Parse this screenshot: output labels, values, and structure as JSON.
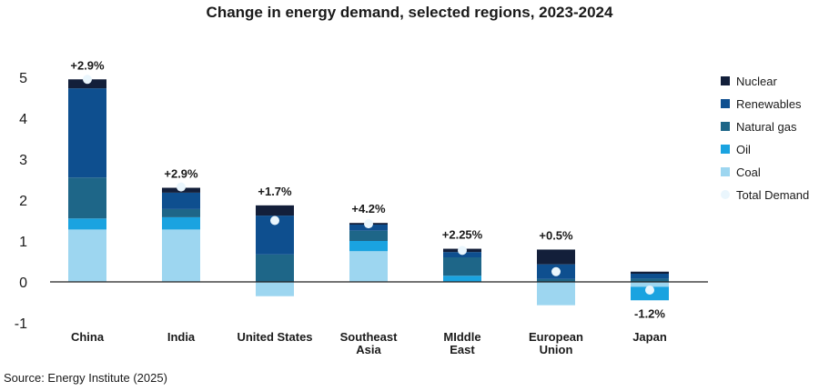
{
  "chart_data": {
    "type": "bar",
    "stacked": true,
    "title": "Change in energy demand, selected regions, 2023-2024",
    "source": "Source: Energy Institute (2025)",
    "xlabel": "",
    "ylabel": "",
    "ylim": [
      -1,
      5
    ],
    "yticks": [
      "-1",
      "0",
      "1",
      "2",
      "3",
      "4",
      "5"
    ],
    "categories": [
      [
        "China"
      ],
      [
        "India"
      ],
      [
        "United States"
      ],
      [
        "Southeast",
        "Asia"
      ],
      [
        "MIddle",
        "East"
      ],
      [
        "European",
        "Union"
      ],
      [
        "Japan"
      ]
    ],
    "series": [
      {
        "name": "Coal",
        "color": "#9dd6f0",
        "values": [
          1.28,
          1.28,
          -0.35,
          0.75,
          0.0,
          -0.57,
          -0.12
        ]
      },
      {
        "name": "Oil",
        "color": "#1aa3e0",
        "values": [
          0.27,
          0.3,
          0.0,
          0.25,
          0.15,
          0.0,
          -0.33
        ]
      },
      {
        "name": "Natural gas",
        "color": "#1e6688",
        "values": [
          1.0,
          0.2,
          0.67,
          0.25,
          0.45,
          0.07,
          0.08
        ]
      },
      {
        "name": "Renewables",
        "color": "#0e4f8f",
        "values": [
          2.18,
          0.4,
          0.95,
          0.15,
          0.13,
          0.36,
          0.12
        ]
      },
      {
        "name": "Nuclear",
        "color": "#131f3a",
        "values": [
          0.22,
          0.12,
          0.25,
          0.04,
          0.08,
          0.36,
          0.05
        ]
      }
    ],
    "total_demand": {
      "name": "Total Demand",
      "color": "#eaf6fd",
      "values": [
        4.95,
        2.32,
        1.5,
        1.42,
        0.77,
        0.25,
        -0.2
      ]
    },
    "data_labels": [
      "+2.9%",
      "+2.9%",
      "+1.7%",
      "+4.2%",
      "+2.25%",
      "+0.5%",
      "-1.2%"
    ],
    "legend_order": [
      "Nuclear",
      "Renewables",
      "Natural gas",
      "Oil",
      "Coal",
      "Total Demand"
    ],
    "legend_position": "right"
  }
}
